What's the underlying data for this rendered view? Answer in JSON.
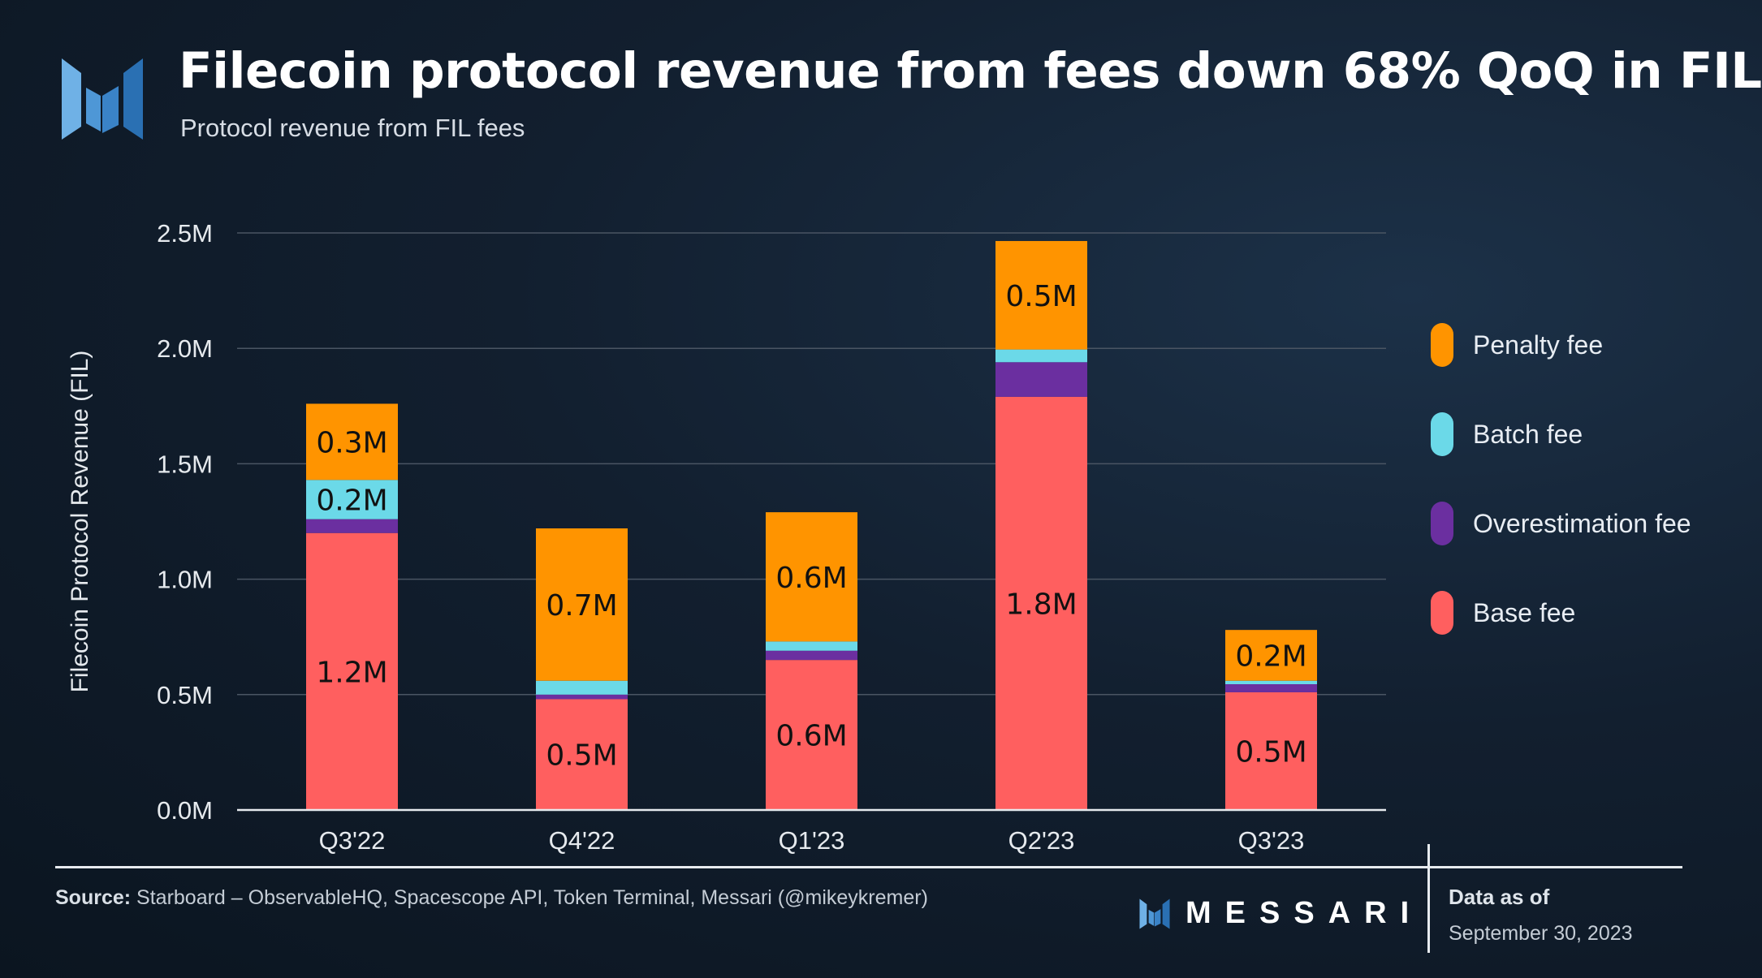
{
  "header": {
    "title": "Filecoin protocol revenue from fees down 68% QoQ in FIL",
    "subtitle": "Protocol revenue from FIL fees",
    "logo_icon": "messari-logo-icon"
  },
  "chart_data": {
    "type": "bar",
    "stacked": true,
    "title": "Filecoin protocol revenue from fees down 68% QoQ in FIL",
    "subtitle": "Protocol revenue from FIL fees",
    "xlabel": "",
    "ylabel": "Filecoin Protocol Revenue (FIL)",
    "ylim": [
      0,
      2500000
    ],
    "yticks": [
      0,
      500000,
      1000000,
      1500000,
      2000000,
      2500000
    ],
    "ytick_labels": [
      "0.0M",
      "0.5M",
      "1.0M",
      "1.5M",
      "2.0M",
      "2.5M"
    ],
    "grid": true,
    "legend_position": "right",
    "categories": [
      "Q3'22",
      "Q4'22",
      "Q1'23",
      "Q2'23",
      "Q3'23"
    ],
    "series": [
      {
        "name": "Base fee",
        "color": "#ff5f5f",
        "values": [
          1200000,
          480000,
          650000,
          1790000,
          510000
        ],
        "labels": [
          "1.2M",
          "0.5M",
          "0.6M",
          "1.8M",
          "0.5M"
        ]
      },
      {
        "name": "Overestimation fee",
        "color": "#6b2fa0",
        "values": [
          60000,
          20000,
          40000,
          150000,
          35000
        ],
        "labels": [
          "",
          "",
          "",
          "",
          ""
        ]
      },
      {
        "name": "Batch fee",
        "color": "#6bd9e8",
        "values": [
          170000,
          60000,
          40000,
          55000,
          15000
        ],
        "labels": [
          "0.2M",
          "",
          "",
          "",
          ""
        ]
      },
      {
        "name": "Penalty fee",
        "color": "#ff9400",
        "values": [
          330000,
          660000,
          560000,
          470000,
          220000
        ],
        "labels": [
          "0.3M",
          "0.7M",
          "0.6M",
          "0.5M",
          "0.2M"
        ]
      }
    ],
    "legend_order": [
      "Penalty fee",
      "Batch fee",
      "Overestimation fee",
      "Base fee"
    ]
  },
  "footer": {
    "source_label": "Source:",
    "source_text": "Starboard – ObservableHQ, Spacescope API, Token Terminal, Messari (@mikeykremer)",
    "brand": "MESSARI",
    "as_of_label": "Data as of",
    "as_of_date": "September 30, 2023"
  },
  "colors": {
    "background": "#121f2f",
    "grid": "#4a5563",
    "axis": "#e6eaee",
    "text": "#ffffff"
  }
}
